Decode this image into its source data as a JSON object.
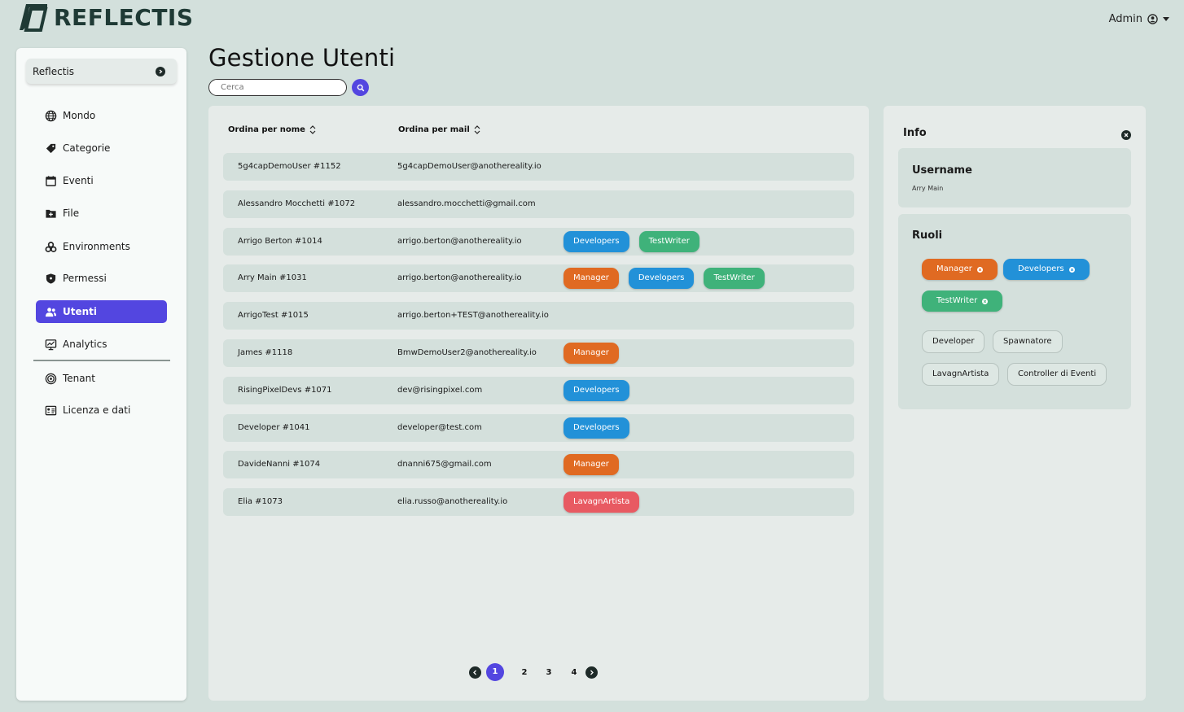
{
  "app": {
    "brand": "REFLECTIS",
    "user_menu": "Admin"
  },
  "sidebar": {
    "tenant": "Reflectis",
    "items": [
      {
        "label": "Mondo",
        "icon": "globe-icon"
      },
      {
        "label": "Categorie",
        "icon": "tag-icon"
      },
      {
        "label": "Eventi",
        "icon": "calendar-icon"
      },
      {
        "label": "File",
        "icon": "folder-add-icon"
      },
      {
        "label": "Environments",
        "icon": "cubes-icon"
      },
      {
        "label": "Permessi",
        "icon": "shield-icon"
      },
      {
        "label": "Utenti",
        "icon": "users-icon",
        "active": true
      },
      {
        "label": "Analytics",
        "icon": "chart-monitor-icon"
      },
      {
        "label": "Tenant",
        "icon": "tenant-icon"
      },
      {
        "label": "Licenza e dati",
        "icon": "license-icon"
      }
    ]
  },
  "main": {
    "title": "Gestione Utenti",
    "search": {
      "placeholder": "Cerca",
      "value": ""
    },
    "sort_by_name": "Ordina per nome",
    "sort_by_mail": "Ordina per mail",
    "users": [
      {
        "name": "5g4capDemoUser #1152",
        "mail": "5g4capDemoUser@anothereality.io",
        "roles": []
      },
      {
        "name": "Alessandro Mocchetti #1072",
        "mail": "alessandro.mocchetti@gmail.com",
        "roles": []
      },
      {
        "name": "Arrigo Berton #1014",
        "mail": "arrigo.berton@anothereality.io",
        "roles": [
          "Developers",
          "TestWriter"
        ]
      },
      {
        "name": "Arry Main #1031",
        "mail": "arrigo.berton@anothereality.io",
        "roles": [
          "Manager",
          "Developers",
          "TestWriter"
        ]
      },
      {
        "name": "ArrigoTest #1015",
        "mail": "arrigo.berton+TEST@anothereality.io",
        "roles": []
      },
      {
        "name": "James #1118",
        "mail": "BmwDemoUser2@anothereality.io",
        "roles": [
          "Manager"
        ]
      },
      {
        "name": "RisingPixelDevs #1071",
        "mail": "dev@risingpixel.com",
        "roles": [
          "Developers"
        ]
      },
      {
        "name": "Developer #1041",
        "mail": "developer@test.com",
        "roles": [
          "Developers"
        ]
      },
      {
        "name": "DavideNanni #1074",
        "mail": "dnanni675@gmail.com",
        "roles": [
          "Manager"
        ]
      },
      {
        "name": "Elia #1073",
        "mail": "elia.russo@anothereality.io",
        "roles": [
          "LavagnArtista"
        ]
      }
    ],
    "pagination": {
      "pages": [
        "1",
        "2",
        "3",
        "4"
      ],
      "current": "1"
    }
  },
  "role_colors": {
    "Manager": "#e06a22",
    "Developers": "#2291d8",
    "TestWriter": "#3fb27a",
    "LavagnArtista": "#e85a62"
  },
  "info": {
    "title": "Info",
    "username_label": "Username",
    "username_value": "Arry Main",
    "roles_label": "Ruoli",
    "assigned_roles": [
      "Manager",
      "Developers",
      "TestWriter"
    ],
    "available_roles": [
      "Developer",
      "Spawnatore",
      "LavagnArtista",
      "Controller di Eventi"
    ]
  }
}
